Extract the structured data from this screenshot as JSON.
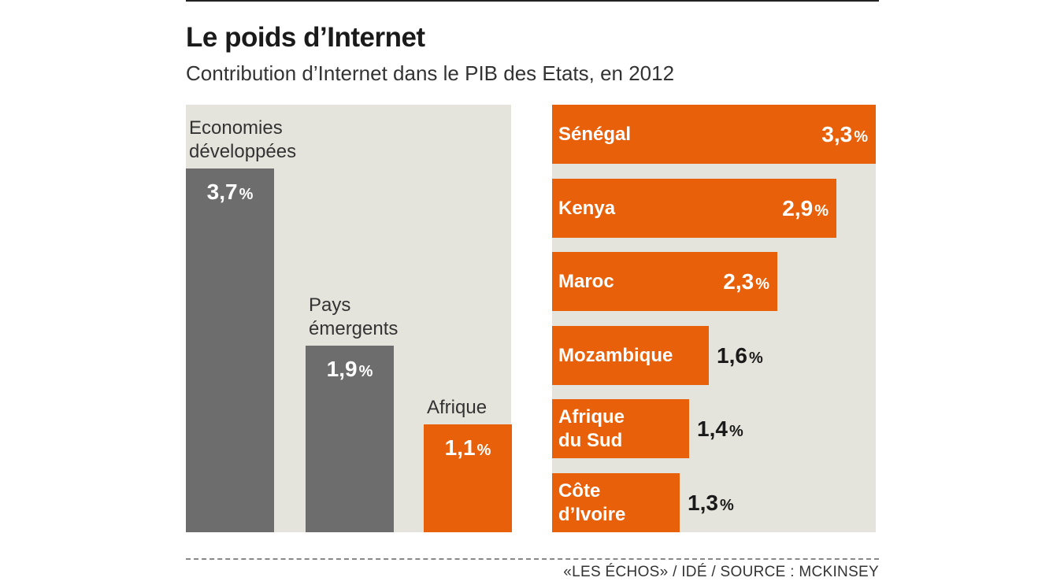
{
  "header": {
    "title": "Le poids d’Internet",
    "subtitle": "Contribution d’Internet dans le PIB des Etats, en 2012"
  },
  "footer": {
    "source": "«LES ÉCHOS» / IDÉ / SOURCE : MCKINSEY"
  },
  "colors": {
    "gray_bar": "#6d6d6d",
    "orange_bar": "#e8600a",
    "panel_bg": "#e5e4dc"
  },
  "chart_data": [
    {
      "type": "bar",
      "orientation": "vertical",
      "unit": "%",
      "categories": [
        "Economies développées",
        "Pays émergents",
        "Afrique"
      ],
      "category_lines": [
        [
          "Economies",
          "développées"
        ],
        [
          "Pays",
          "émergents"
        ],
        [
          "Afrique"
        ]
      ],
      "values": [
        3.7,
        1.9,
        1.1
      ],
      "value_labels": [
        "3,7",
        "1,9",
        "1,1"
      ],
      "bar_colors": [
        "#6d6d6d",
        "#6d6d6d",
        "#e8600a"
      ],
      "ylim": [
        0,
        4
      ]
    },
    {
      "type": "bar",
      "orientation": "horizontal",
      "unit": "%",
      "categories": [
        "Sénégal",
        "Kenya",
        "Maroc",
        "Mozambique",
        "Afrique du Sud",
        "Côte d’Ivoire"
      ],
      "category_lines": [
        [
          "Sénégal"
        ],
        [
          "Kenya"
        ],
        [
          "Maroc"
        ],
        [
          "Mozambique"
        ],
        [
          "Afrique",
          "du Sud"
        ],
        [
          "Côte",
          "d’Ivoire"
        ]
      ],
      "values": [
        3.3,
        2.9,
        2.3,
        1.6,
        1.4,
        1.3
      ],
      "value_labels": [
        "3,3",
        "2,9",
        "2,3",
        "1,6",
        "1,4",
        "1,3"
      ],
      "bar_color": "#e8600a",
      "xlim": [
        0,
        3.3
      ]
    }
  ]
}
